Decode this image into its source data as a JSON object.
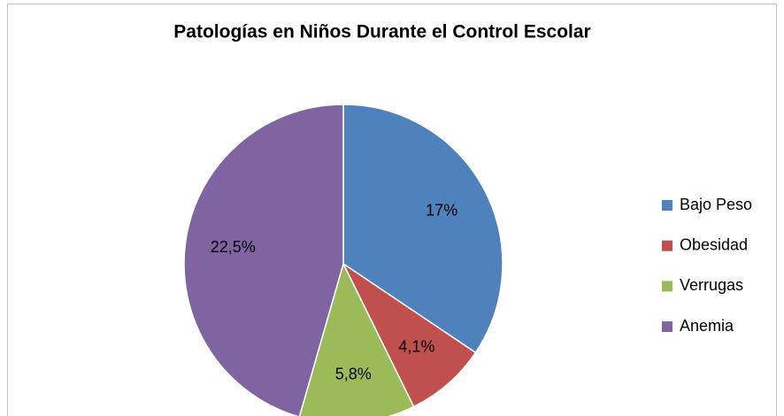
{
  "chart_data": {
    "type": "pie",
    "title": "Patologías en Niños Durante el Control Escolar",
    "categories": [
      "Bajo Peso",
      "Obesidad",
      "Verrugas",
      "Anemia"
    ],
    "values": [
      17,
      4.1,
      5.8,
      22.5
    ],
    "value_labels": [
      "17%",
      "4,1%",
      "5,8%",
      "22,5%"
    ],
    "colors": [
      "#4f81bd",
      "#c0504d",
      "#9bbb59",
      "#8064a2"
    ],
    "legend": "right"
  }
}
